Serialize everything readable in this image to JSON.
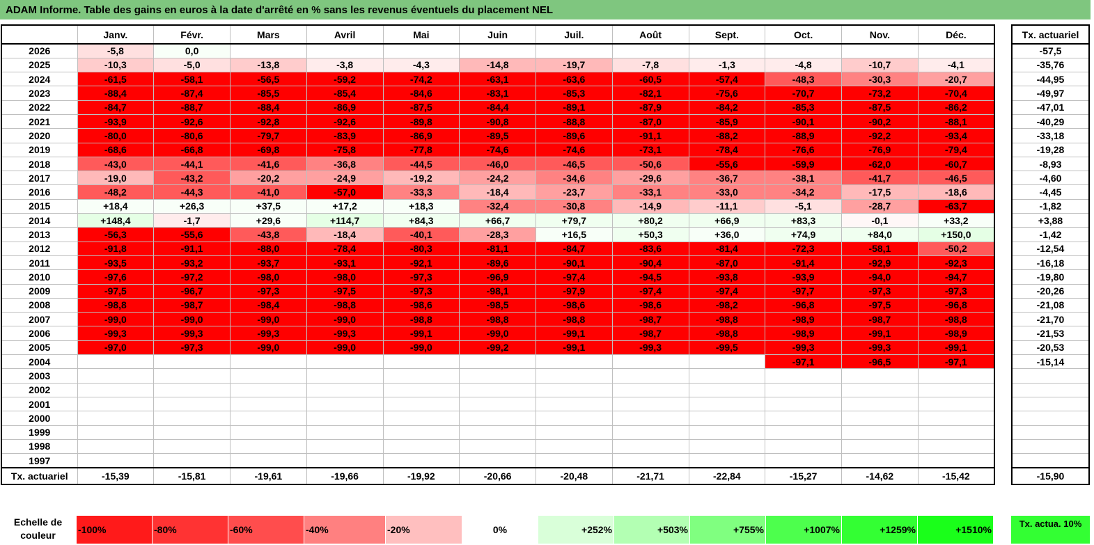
{
  "title": "ADAM Informe. Table des gains en euros à la date d'arrêté en % sans les revenus éventuels du placement NEL",
  "months": [
    "Janv.",
    "Févr.",
    "Mars",
    "Avril",
    "Mai",
    "Juin",
    "Juil.",
    "Août",
    "Sept.",
    "Oct.",
    "Nov.",
    "Déc."
  ],
  "rate_header": "Tx. actuariel",
  "rows": [
    {
      "year": "2026",
      "values": [
        "-5,8",
        "0,0",
        "",
        "",
        "",
        "",
        "",
        "",
        "",
        "",
        "",
        ""
      ],
      "rate": "-57,5"
    },
    {
      "year": "2025",
      "values": [
        "-10,3",
        "-5,0",
        "-13,8",
        "-3,8",
        "-4,3",
        "-14,8",
        "-19,7",
        "-7,8",
        "-1,3",
        "-4,8",
        "-10,7",
        "-4,1"
      ],
      "rate": "-35,76"
    },
    {
      "year": "2024",
      "values": [
        "-61,5",
        "-58,1",
        "-56,5",
        "-59,2",
        "-74,2",
        "-63,1",
        "-63,6",
        "-60,5",
        "-57,4",
        "-48,3",
        "-30,3",
        "-20,7"
      ],
      "rate": "-44,95"
    },
    {
      "year": "2023",
      "values": [
        "-88,4",
        "-87,4",
        "-85,5",
        "-85,4",
        "-84,6",
        "-83,1",
        "-85,3",
        "-82,1",
        "-75,6",
        "-70,7",
        "-73,2",
        "-70,4"
      ],
      "rate": "-49,97"
    },
    {
      "year": "2022",
      "values": [
        "-84,7",
        "-88,7",
        "-88,4",
        "-86,9",
        "-87,5",
        "-84,4",
        "-89,1",
        "-87,9",
        "-84,2",
        "-85,3",
        "-87,5",
        "-86,2"
      ],
      "rate": "-47,01"
    },
    {
      "year": "2021",
      "values": [
        "-93,9",
        "-92,6",
        "-92,8",
        "-92,6",
        "-89,8",
        "-90,8",
        "-88,8",
        "-87,0",
        "-85,9",
        "-90,1",
        "-90,2",
        "-88,1"
      ],
      "rate": "-40,29"
    },
    {
      "year": "2020",
      "values": [
        "-80,0",
        "-80,6",
        "-79,7",
        "-83,9",
        "-86,9",
        "-89,5",
        "-89,6",
        "-91,1",
        "-88,2",
        "-88,9",
        "-92,2",
        "-93,4"
      ],
      "rate": "-33,18"
    },
    {
      "year": "2019",
      "values": [
        "-68,6",
        "-66,8",
        "-69,8",
        "-75,8",
        "-77,8",
        "-74,6",
        "-74,6",
        "-73,1",
        "-78,4",
        "-76,6",
        "-76,9",
        "-79,4"
      ],
      "rate": "-19,28"
    },
    {
      "year": "2018",
      "values": [
        "-43,0",
        "-44,1",
        "-41,6",
        "-36,8",
        "-44,5",
        "-46,0",
        "-46,5",
        "-50,6",
        "-55,6",
        "-59,9",
        "-62,0",
        "-60,7"
      ],
      "rate": "-8,93"
    },
    {
      "year": "2017",
      "values": [
        "-19,0",
        "-43,2",
        "-20,2",
        "-24,9",
        "-19,2",
        "-24,2",
        "-34,6",
        "-29,6",
        "-36,7",
        "-38,1",
        "-41,7",
        "-46,5"
      ],
      "rate": "-4,60"
    },
    {
      "year": "2016",
      "values": [
        "-48,2",
        "-44,3",
        "-41,0",
        "-57,0",
        "-33,3",
        "-18,4",
        "-23,7",
        "-33,1",
        "-33,0",
        "-34,2",
        "-17,5",
        "-18,6"
      ],
      "rate": "-4,45"
    },
    {
      "year": "2015",
      "values": [
        "+18,4",
        "+26,3",
        "+37,5",
        "+17,2",
        "+18,3",
        "-32,4",
        "-30,8",
        "-14,9",
        "-11,1",
        "-5,1",
        "-28,7",
        "-63,7"
      ],
      "rate": "-1,82"
    },
    {
      "year": "2014",
      "values": [
        "+148,4",
        "-1,7",
        "+29,6",
        "+114,7",
        "+84,3",
        "+66,7",
        "+79,7",
        "+80,2",
        "+66,9",
        "+83,3",
        "-0,1",
        "+33,2"
      ],
      "rate": "+3,88"
    },
    {
      "year": "2013",
      "values": [
        "-56,3",
        "-55,6",
        "-43,8",
        "-18,4",
        "-40,1",
        "-28,3",
        "+16,5",
        "+50,3",
        "+36,0",
        "+74,9",
        "+84,0",
        "+150,0"
      ],
      "rate": "-1,42"
    },
    {
      "year": "2012",
      "values": [
        "-91,8",
        "-91,1",
        "-88,0",
        "-78,4",
        "-80,3",
        "-81,1",
        "-84,7",
        "-83,6",
        "-81,4",
        "-72,3",
        "-58,1",
        "-50,2"
      ],
      "rate": "-12,54"
    },
    {
      "year": "2011",
      "values": [
        "-93,5",
        "-93,2",
        "-93,7",
        "-93,1",
        "-92,1",
        "-89,6",
        "-90,1",
        "-90,4",
        "-87,0",
        "-91,4",
        "-92,9",
        "-92,3"
      ],
      "rate": "-16,18"
    },
    {
      "year": "2010",
      "values": [
        "-97,6",
        "-97,2",
        "-98,0",
        "-98,0",
        "-97,3",
        "-96,9",
        "-97,4",
        "-94,5",
        "-93,8",
        "-93,9",
        "-94,0",
        "-94,7"
      ],
      "rate": "-19,80"
    },
    {
      "year": "2009",
      "values": [
        "-97,5",
        "-96,7",
        "-97,3",
        "-97,5",
        "-97,3",
        "-98,1",
        "-97,9",
        "-97,4",
        "-97,4",
        "-97,7",
        "-97,3",
        "-97,3"
      ],
      "rate": "-20,26"
    },
    {
      "year": "2008",
      "values": [
        "-98,8",
        "-98,7",
        "-98,4",
        "-98,8",
        "-98,6",
        "-98,5",
        "-98,6",
        "-98,6",
        "-98,2",
        "-96,8",
        "-97,5",
        "-96,8"
      ],
      "rate": "-21,08"
    },
    {
      "year": "2007",
      "values": [
        "-99,0",
        "-99,0",
        "-99,0",
        "-99,0",
        "-98,8",
        "-98,8",
        "-98,8",
        "-98,7",
        "-98,8",
        "-98,9",
        "-98,7",
        "-98,8"
      ],
      "rate": "-21,70"
    },
    {
      "year": "2006",
      "values": [
        "-99,3",
        "-99,3",
        "-99,3",
        "-99,3",
        "-99,1",
        "-99,0",
        "-99,1",
        "-98,7",
        "-98,8",
        "-98,9",
        "-99,1",
        "-98,9"
      ],
      "rate": "-21,53"
    },
    {
      "year": "2005",
      "values": [
        "-97,0",
        "-97,3",
        "-99,0",
        "-99,0",
        "-99,0",
        "-99,2",
        "-99,1",
        "-99,3",
        "-99,5",
        "-99,3",
        "-99,3",
        "-99,1"
      ],
      "rate": "-20,53"
    },
    {
      "year": "2004",
      "values": [
        "",
        "",
        "",
        "",
        "",
        "",
        "",
        "",
        "",
        "-97,1",
        "-96,5",
        "-97,1"
      ],
      "rate": "-15,14"
    },
    {
      "year": "2003",
      "values": [
        "",
        "",
        "",
        "",
        "",
        "",
        "",
        "",
        "",
        "",
        "",
        ""
      ],
      "rate": ""
    },
    {
      "year": "2002",
      "values": [
        "",
        "",
        "",
        "",
        "",
        "",
        "",
        "",
        "",
        "",
        "",
        ""
      ],
      "rate": ""
    },
    {
      "year": "2001",
      "values": [
        "",
        "",
        "",
        "",
        "",
        "",
        "",
        "",
        "",
        "",
        "",
        ""
      ],
      "rate": ""
    },
    {
      "year": "2000",
      "values": [
        "",
        "",
        "",
        "",
        "",
        "",
        "",
        "",
        "",
        "",
        "",
        ""
      ],
      "rate": ""
    },
    {
      "year": "1999",
      "values": [
        "",
        "",
        "",
        "",
        "",
        "",
        "",
        "",
        "",
        "",
        "",
        ""
      ],
      "rate": ""
    },
    {
      "year": "1998",
      "values": [
        "",
        "",
        "",
        "",
        "",
        "",
        "",
        "",
        "",
        "",
        "",
        ""
      ],
      "rate": ""
    },
    {
      "year": "1997",
      "values": [
        "",
        "",
        "",
        "",
        "",
        "",
        "",
        "",
        "",
        "",
        "",
        ""
      ],
      "rate": ""
    }
  ],
  "footer": {
    "label": "Tx. actuariel",
    "values": [
      "-15,39",
      "-15,81",
      "-19,61",
      "-19,66",
      "-19,92",
      "-20,66",
      "-20,48",
      "-21,71",
      "-22,84",
      "-15,27",
      "-14,62",
      "-15,42"
    ],
    "rate": "-15,90"
  },
  "scale": {
    "label": "Echelle de couleur",
    "cells": [
      {
        "text": "-100%",
        "color": "#ff1a1a",
        "align": "left"
      },
      {
        "text": "-80%",
        "color": "#ff3333",
        "align": "left"
      },
      {
        "text": "-60%",
        "color": "#ff4d4d",
        "align": "left"
      },
      {
        "text": "-40%",
        "color": "#ff8080",
        "align": "left"
      },
      {
        "text": "-20%",
        "color": "#ffbfbf",
        "align": "left"
      },
      {
        "text": "0%",
        "color": "#ffffff",
        "align": "center"
      },
      {
        "text": "+252%",
        "color": "#d9ffd9",
        "align": "right"
      },
      {
        "text": "+503%",
        "color": "#b3ffb3",
        "align": "right"
      },
      {
        "text": "+755%",
        "color": "#80ff80",
        "align": "right"
      },
      {
        "text": "+1007%",
        "color": "#4dff4d",
        "align": "right"
      },
      {
        "text": "+1259%",
        "color": "#33ff33",
        "align": "right"
      },
      {
        "text": "+1510%",
        "color": "#1aff1a",
        "align": "right"
      }
    ],
    "rate_text": "Tx. actua. 10%"
  }
}
